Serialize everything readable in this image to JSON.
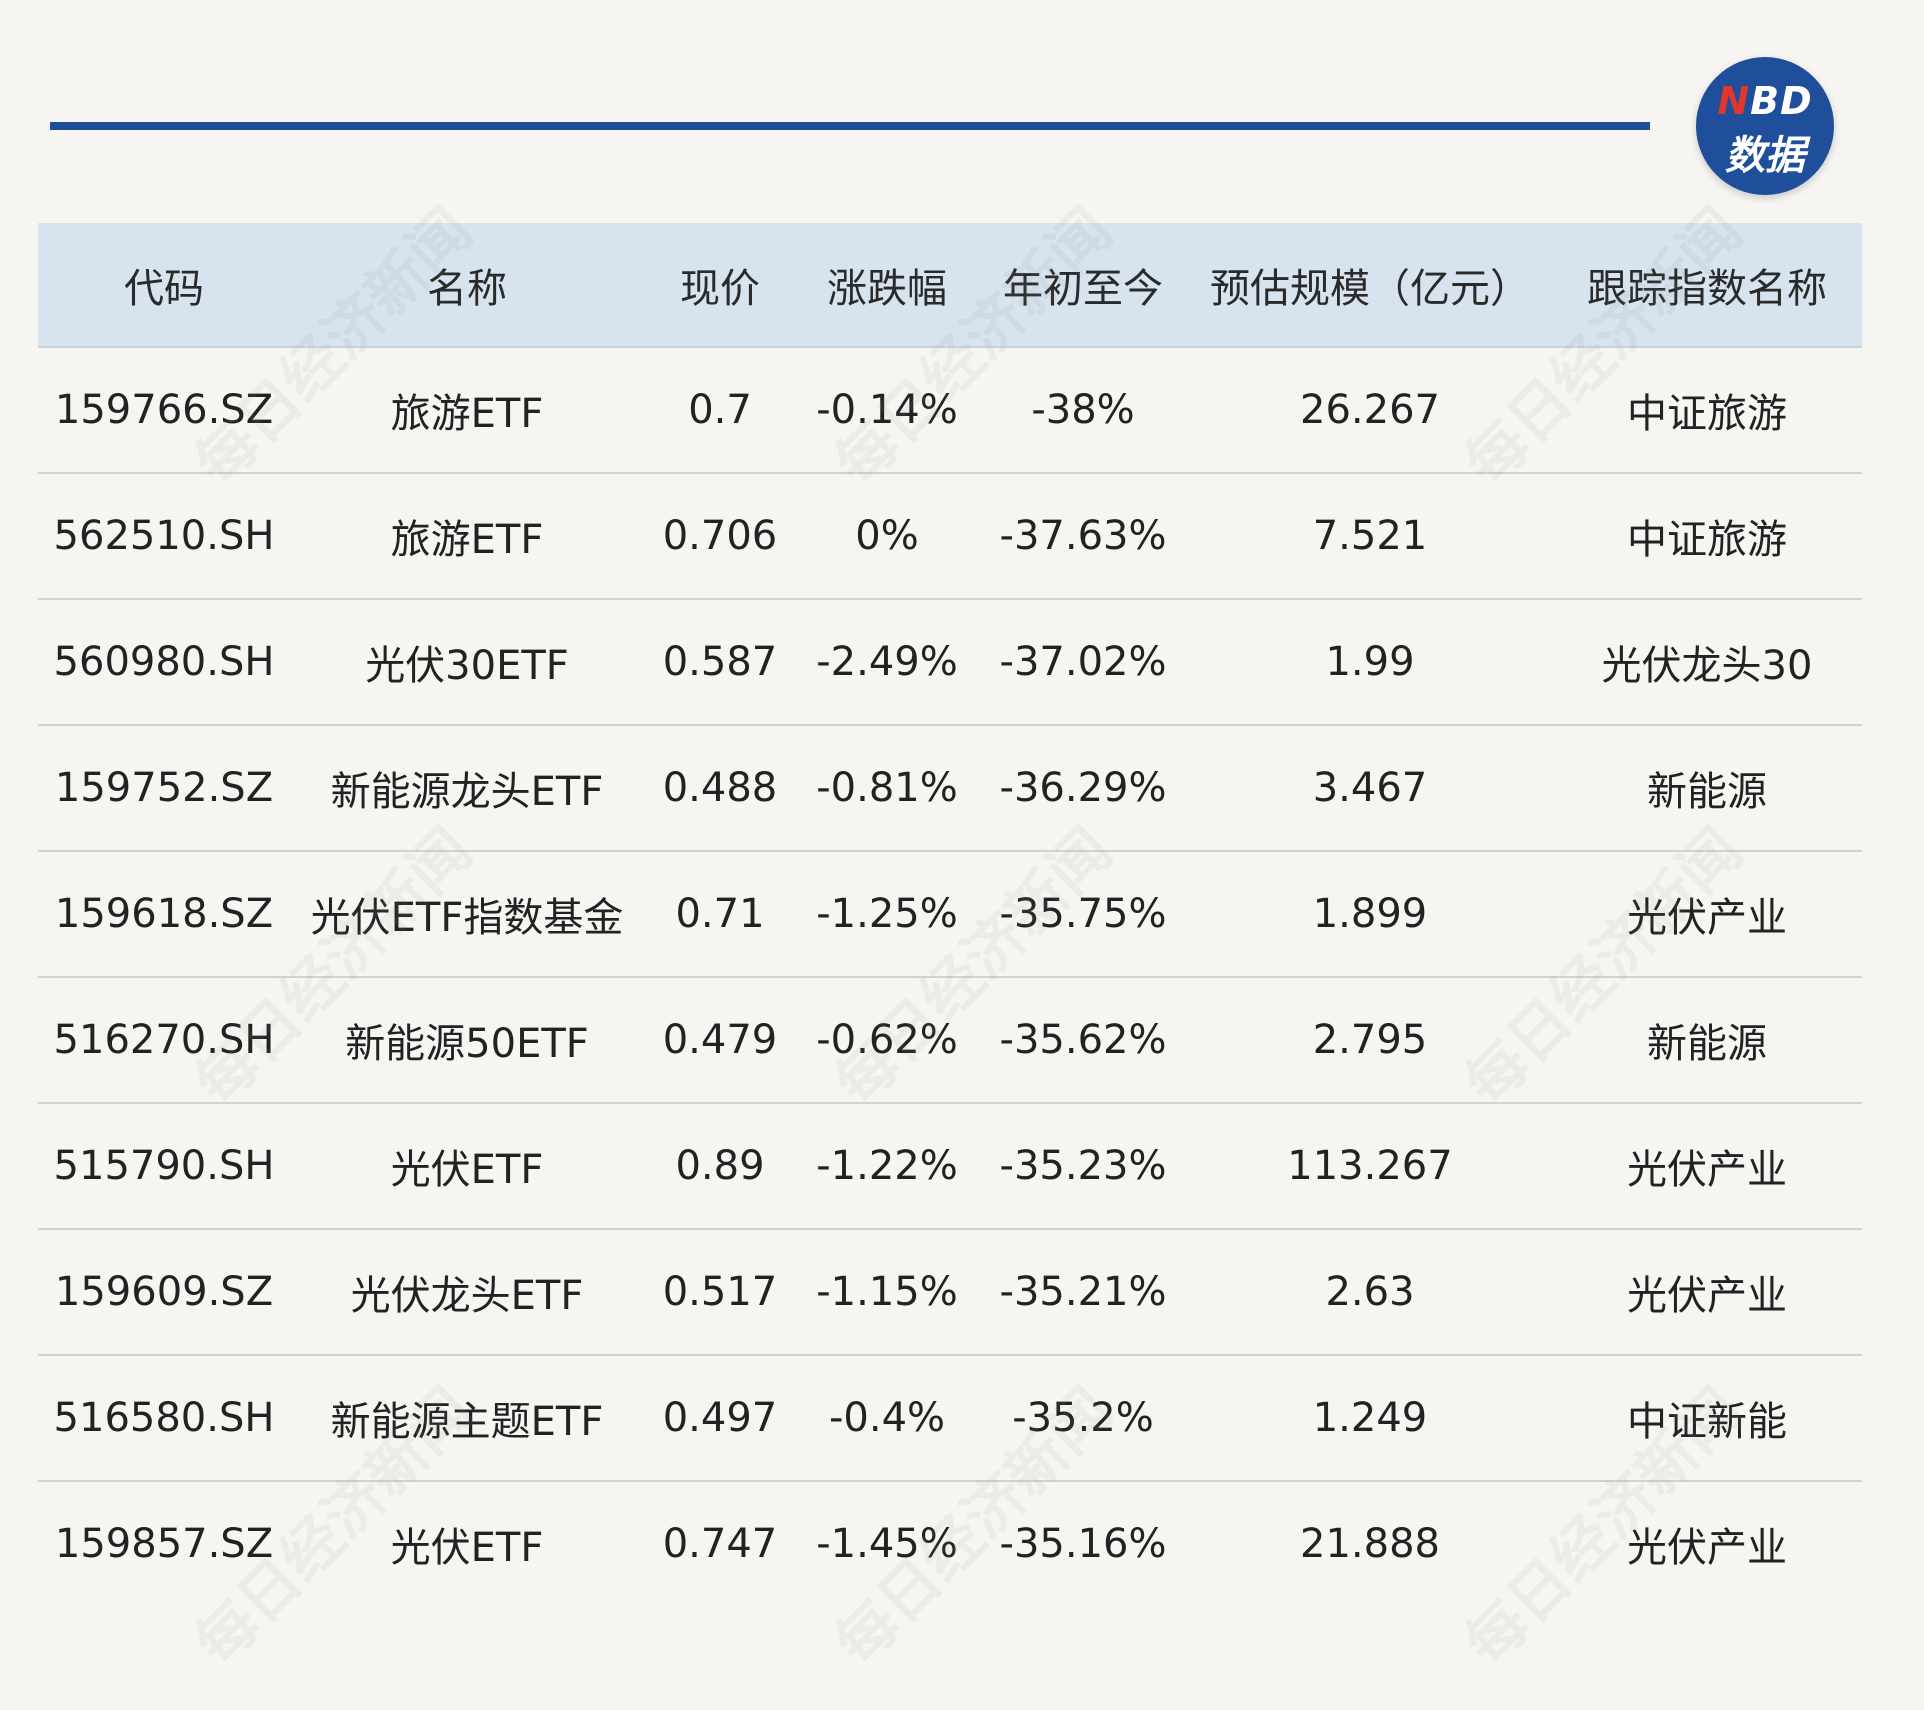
{
  "logo": {
    "line1_accent": "N",
    "line1_rest": "BD",
    "line2": "数据"
  },
  "watermark_text": "每日经济新闻",
  "colors": {
    "header_band": "#1f4e9b",
    "table_header_bg": "#d7e3ef",
    "logo_bg": "#1f4e9b",
    "logo_accent": "#e2372c",
    "page_bg": "#f7f5f2"
  },
  "table": {
    "columns": [
      "代码",
      "名称",
      "现价",
      "涨跌幅",
      "年初至今",
      "预估规模（亿元）",
      "跟踪指数名称"
    ],
    "rows": [
      [
        "159766.SZ",
        "旅游ETF",
        "0.7",
        "-0.14%",
        "-38%",
        "26.267",
        "中证旅游"
      ],
      [
        "562510.SH",
        "旅游ETF",
        "0.706",
        "0%",
        "-37.63%",
        "7.521",
        "中证旅游"
      ],
      [
        "560980.SH",
        "光伏30ETF",
        "0.587",
        "-2.49%",
        "-37.02%",
        "1.99",
        "光伏龙头30"
      ],
      [
        "159752.SZ",
        "新能源龙头ETF",
        "0.488",
        "-0.81%",
        "-36.29%",
        "3.467",
        "新能源"
      ],
      [
        "159618.SZ",
        "光伏ETF指数基金",
        "0.71",
        "-1.25%",
        "-35.75%",
        "1.899",
        "光伏产业"
      ],
      [
        "516270.SH",
        "新能源50ETF",
        "0.479",
        "-0.62%",
        "-35.62%",
        "2.795",
        "新能源"
      ],
      [
        "515790.SH",
        "光伏ETF",
        "0.89",
        "-1.22%",
        "-35.23%",
        "113.267",
        "光伏产业"
      ],
      [
        "159609.SZ",
        "光伏龙头ETF",
        "0.517",
        "-1.15%",
        "-35.21%",
        "2.63",
        "光伏产业"
      ],
      [
        "516580.SH",
        "新能源主题ETF",
        "0.497",
        "-0.4%",
        "-35.2%",
        "1.249",
        "中证新能"
      ],
      [
        "159857.SZ",
        "光伏ETF",
        "0.747",
        "-1.45%",
        "-35.16%",
        "21.888",
        "光伏产业"
      ]
    ]
  }
}
